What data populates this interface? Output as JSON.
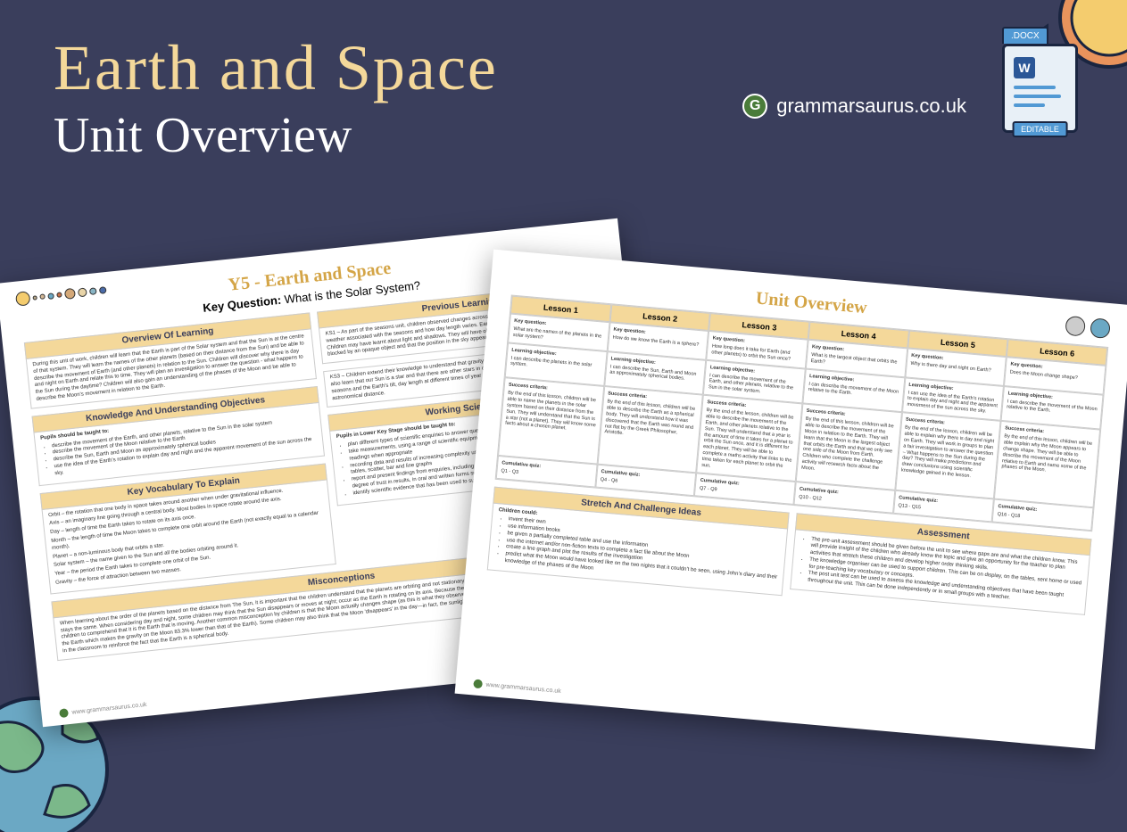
{
  "colors": {
    "background": "#3a3e5c",
    "title_cream": "#f4d89a",
    "white": "#ffffff",
    "accent_gold": "#d4a547",
    "section_bg": "#f4d89a",
    "docx_blue": "#5199d4",
    "docx_w_blue": "#2b5797",
    "earth_green": "#7bb88a",
    "earth_blue": "#6ba8c4",
    "sun_orange": "#e8935c",
    "sun_yellow": "#f4cc6e"
  },
  "header": {
    "title_main": "Earth and Space",
    "title_sub": "Unit Overview",
    "brand": "grammarsaurus.co.uk",
    "brand_glyph": "G"
  },
  "docx": {
    "tab": ".DOCX",
    "letter": "W",
    "editable": "EDITABLE"
  },
  "page1": {
    "title": "Y5 - Earth and Space",
    "key_q_label": "Key Question:",
    "key_q": "What is the Solar System?",
    "sections": {
      "overview": {
        "head": "Overview Of Learning",
        "body": "During this unit of work, children will learn that the Earth is part of the Solar system and that the Sun is at the centre of that system. They will learn the names of the other planets (based on their distance from the Sun) and be able to describe the movement of Earth (and other planets) in relation to the Sun. Children will discover why there is day and night on Earth and relate this to time. They will plan an investigation to answer the question - what happens to the Sun during the daytime? Children will also gain an understanding of the phases of the Moon and be able to describe the Moon's movement in relation to the Earth."
      },
      "previous": {
        "head": "Previous Learning",
        "body": "KS1 – As part of the seasons unit, children observed changes across the four seasons and observed/described weather associated with the seasons and how day length varies. Earth and Space is not taught at KS1. Year 3 – Children may have learnt about light and shadows. They will have observed that shadows are formed when light is blocked by an opaque object and that the position in the sky appears to change."
      },
      "knowledge": {
        "head": "Knowledge And Understanding Objectives",
        "intro": "Pupils should be taught to:",
        "items": [
          "describe the movement of the Earth, and other planets, relative to the Sun in the solar system",
          "describe the movement of the Moon relative to the Earth",
          "describe the Sun, Earth and Moon as approximately spherical bodies",
          "use the idea of the Earth's rotation to explain day and night and the apparent movement of the sun across the sky."
        ],
        "right": "KS3 – Children extend their knowledge to understand that gravity is different on other planets and stars. They will also learn that our Sun is a star and that there are other stars in our galaxy and other galaxies. They will study the seasons and the Earth's tilt, day length at different times of year in different hemispheres. A light year is a unit of astronomical distance."
      },
      "vocab": {
        "head": "Key Vocabulary To Explain",
        "items": [
          "Orbit – the rotation that one body in space takes around another when under gravitational influence.",
          "Axis – an imaginary line going through a central body. Most bodies in space rotate around the axis.",
          "Day – length of time the Earth takes to rotate on its axis once.",
          "Month – the length of time the Moon takes to complete one orbit around the Earth (not exactly equal to a calendar month).",
          "Planet – a non-luminous body that orbits a star.",
          "Solar system – the name given to the Sun and all the bodies orbiting around it.",
          "Year – the period the Earth takes to complete one orbit of the Sun.",
          "Gravity – the force of attraction between two masses."
        ]
      },
      "working": {
        "head": "Working Scientifically",
        "intro": "Pupils in Lower Key Stage should be taught to:",
        "items": [
          "plan different types of scientific enquiries to answer questions, controlling variables where necessary",
          "take measurements, using a range of scientific equipment with increasing accuracy and precision, taking repeat readings when appropriate",
          "recording data and results of increasing complexity using scientific diagrams and labels, classification keys, tables, scatter, bar and line graphs",
          "report and present findings from enquiries, including conclusions, causal relationships and explanations of and degree of trust in results, in oral and written forms such as displays and other presentations",
          "identify scientific evidence that has been used to support or refute ideas or arguments"
        ]
      },
      "misconceptions": {
        "head": "Misconceptions",
        "body": "When learning about the order of the planets based on the distance from The Sun, it is important that the children understand that the planets are orbiting and not stationary (the Sun is often depicted) but the distance away from the Sun stays the same. When considering day and night, some children may think that the Sun disappears or moves at night; occur as the Earth is rotating on its axis. Because the Sun appears to move across the sky, it can be difficult for the children to comprehend that it is the Earth that is moving. Another common misconception by children is that the Moon actually changes shape (as this is what they observe from Earth) and that there is no gravity on the Moon (the mass of the Earth which makes the gravity on the Moon 83.3% lower than that of the Earth). Some children may also think that the Moon 'disappears' in the day—in fact, the sunlight is too bright (much of the time) to see it. It is useful to have a globe in the classroom to reinforce the fact that the Earth is a spherical body."
      }
    },
    "planets_deco": [
      {
        "size": 16,
        "color": "#f4cc6e"
      },
      {
        "size": 5,
        "color": "#b8a88a"
      },
      {
        "size": 6,
        "color": "#d4b896"
      },
      {
        "size": 7,
        "color": "#6ba8c4"
      },
      {
        "size": 6,
        "color": "#c4704a"
      },
      {
        "size": 12,
        "color": "#d4a878"
      },
      {
        "size": 10,
        "color": "#e8d4a8"
      },
      {
        "size": 8,
        "color": "#88b4c4"
      },
      {
        "size": 8,
        "color": "#4a6ba8"
      }
    ],
    "footer": "www.grammarsaurus.co.uk"
  },
  "page2": {
    "title": "Unit Overview",
    "lessons": [
      {
        "head": "Lesson 1",
        "kq": "What are the names of the planets in the solar system?",
        "lo": "I can describe the planets in the solar system.",
        "sc": "By the end of this lesson, children will be able to name the planets in the solar system based on their distance from the Sun. They will understand that the Sun is a star (not a planet). They will know some facts about a chosen planet.",
        "quiz": "Q1 - Q3"
      },
      {
        "head": "Lesson 2",
        "kq": "How do we know the Earth is a sphere?",
        "lo": "I can describe the Sun, Earth and Moon as approximately spherical bodies.",
        "sc": "By the end of this lesson, children will be able to describe the Earth as a spherical body. They will understand how it was discovered that the Earth was round and not flat by the Greek Philosopher, Aristotle.",
        "quiz": "Q4 - Q6"
      },
      {
        "head": "Lesson 3",
        "kq": "How long does it take for Earth (and other planets) to orbit the Sun once?",
        "lo": "I can describe the movement of the Earth, and other planets, relative to the Sun in the solar system.",
        "sc": "By the end of the lesson, children will be able to describe the movement of the Earth, and other planets relative to the Sun. They will understand that a year is the amount of time it takes for a planet to orbit the Sun once, and it is different for each planet. They will be able to complete a maths activity that links to the time taken for each planet to orbit the sun.",
        "quiz": "Q7 - Q9"
      },
      {
        "head": "Lesson 4",
        "kq": "What is the largest object that orbits the Earth?",
        "lo": "I can describe the movement of the Moon relative to the Earth.",
        "sc": "By the end of this lesson, children will be able to describe the movement of the Moon in relation to the Earth. They will learn that the Moon is the largest object that orbits the Earth and that we only see one side of the Moon from Earth. Children who complete the challenge activity will research facts about the Moon.",
        "quiz": "Q10 - Q12"
      },
      {
        "head": "Lesson 5",
        "kq": "Why is there day and night on Earth?",
        "lo": "I can use the idea of the Earth's rotation to explain day and night and the apparent movement of the sun across the sky.",
        "sc": "By the end of the lesson, children will be able to explain why there is day and night on Earth. They will work in groups to plan a fair investigation to answer the question – What happens to the Sun during the day? They will make predictions and draw conclusions using scientific knowledge gained in the lesson.",
        "quiz": "Q13 - Q15"
      },
      {
        "head": "Lesson 6",
        "kq": "Does the Moon change shape?",
        "lo": "I can describe the movement of the Moon relative to the Earth.",
        "sc": "By the end of this lesson, children will be able explain why the Moon appears to change shape. They will be able to describe the movement of the Moon relative to Earth and name some of the phases of the Moon.",
        "quiz": "Q16 - Q18"
      }
    ],
    "labels": {
      "kq": "Key question:",
      "lo": "Learning objective:",
      "sc": "Success criteria:",
      "quiz": "Cumulative quiz:"
    },
    "stretch": {
      "head": "Stretch And Challenge Ideas",
      "intro": "Children could:",
      "items": [
        "invent their own",
        "use information books",
        "be given a partially completed table and use the information",
        "use the internet and/or non-fiction texts to complete a fact file about the Moon",
        "create a line graph and plot the results of the investigation",
        "predict what the Moon would have looked like on the two nights that it couldn't be seen, using John's diary and their knowledge of the phases of the Moon"
      ]
    },
    "assessment": {
      "head": "Assessment",
      "items": [
        "The pre-unit assessment should be given before the unit to see where gaps are and what the children know. This will provide insight of the children who already know the topic and give an opportunity for the teacher to plan activities that stretch these children and develop higher order thinking skills.",
        "The knowledge organiser can be used to support children. This can be on display, on the tables, sent home or used for pre-teaching key vocabulary or concepts.",
        "The post unit test can be used to assess the knowledge and understanding objectives that have been taught throughout the unit. This can be done independently or in small groups with a teacher."
      ]
    },
    "footer": "www.grammarsaurus.co.uk"
  }
}
